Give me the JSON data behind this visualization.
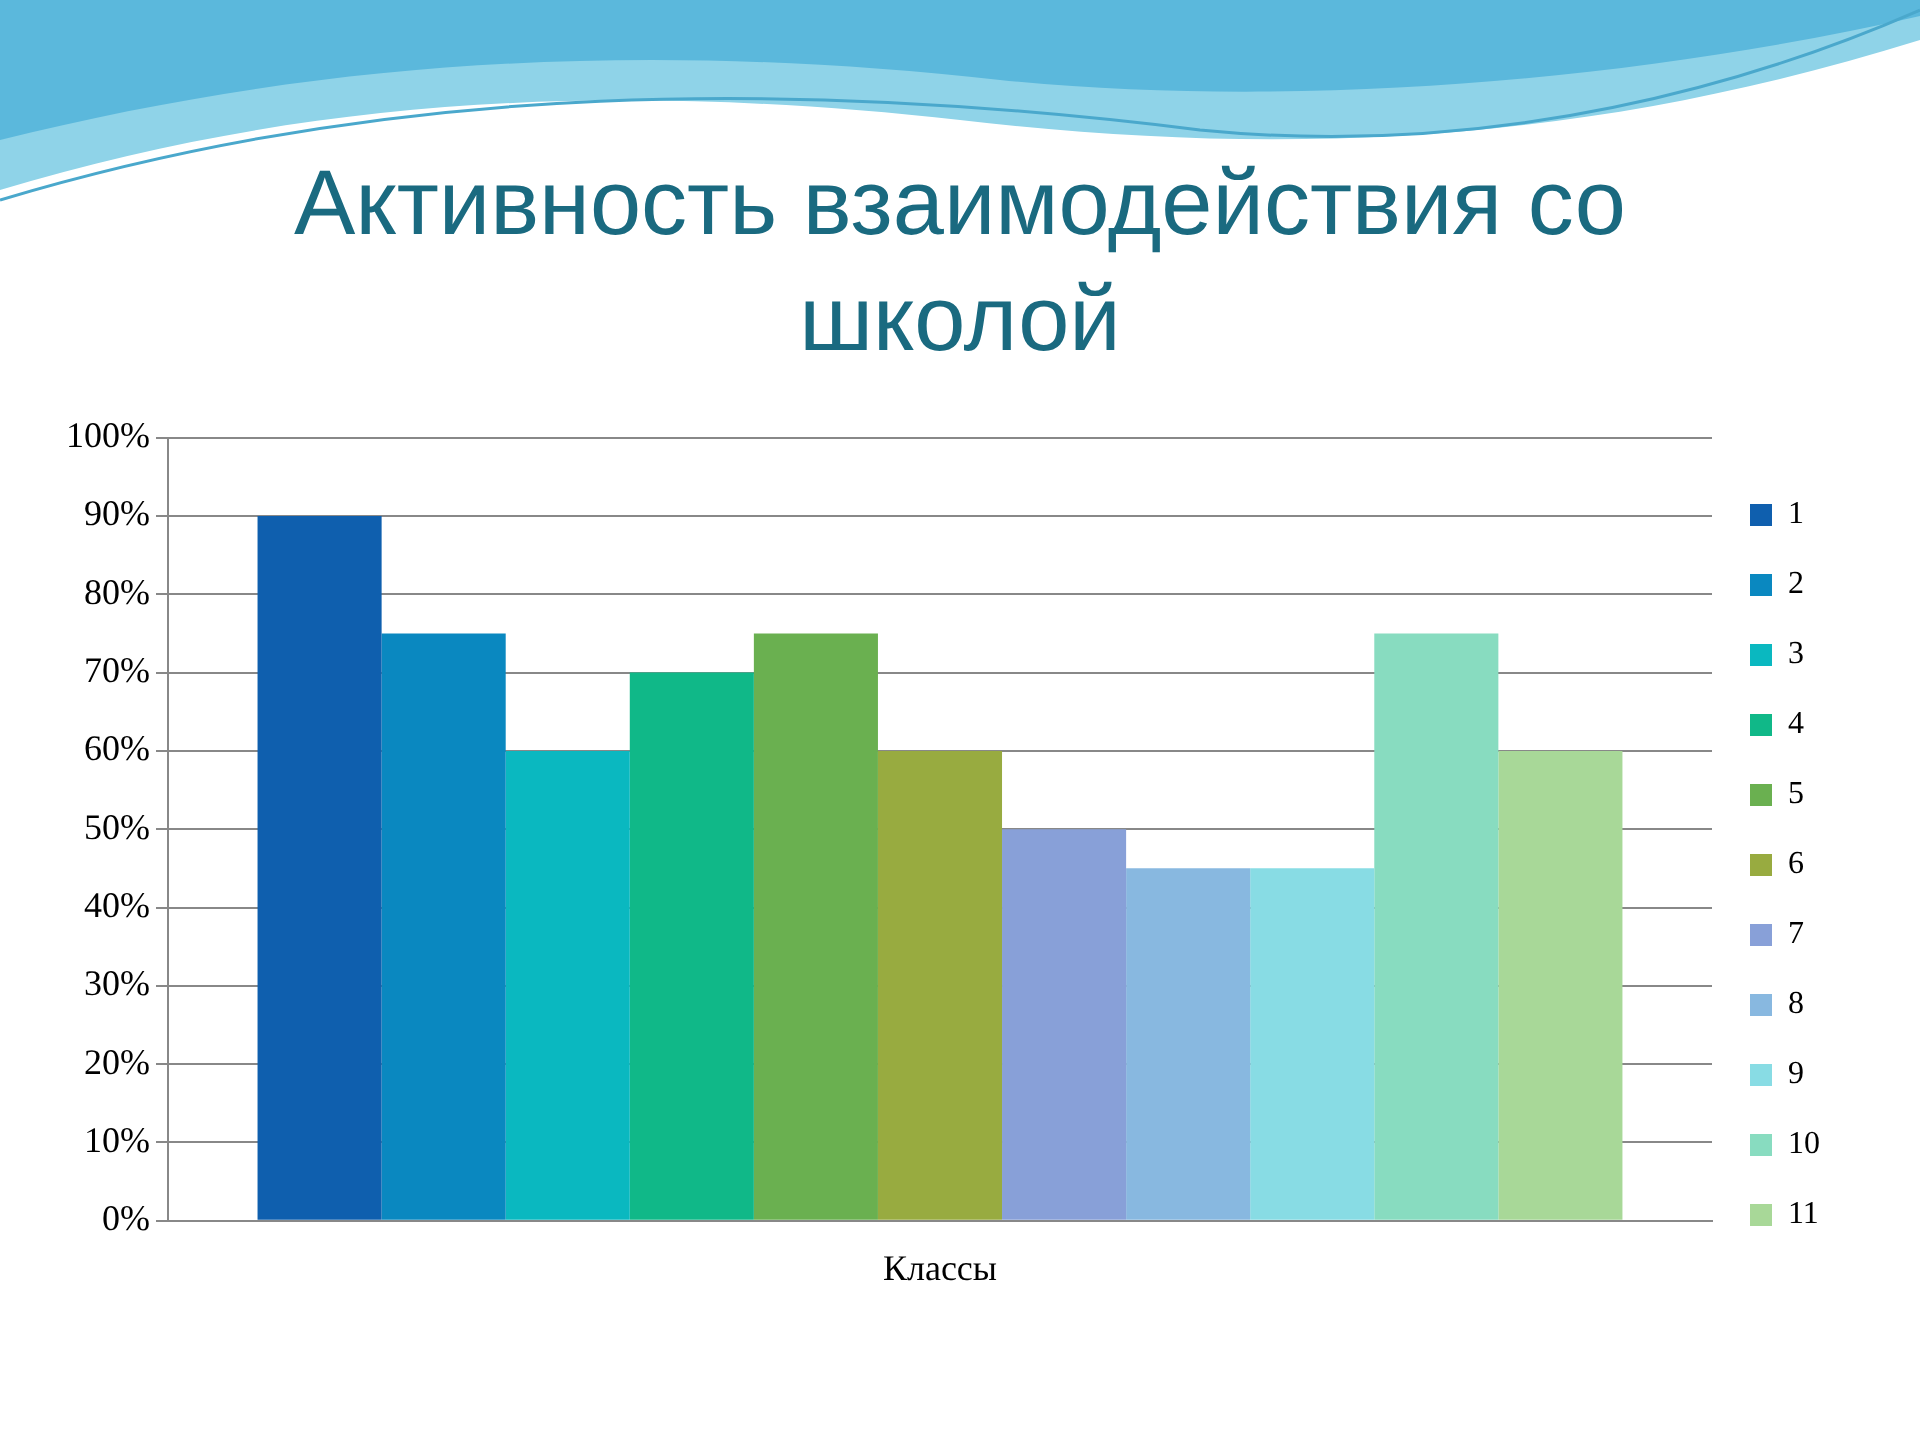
{
  "chart_data": {
    "type": "bar",
    "title": "Активность взаимодействия со школой",
    "categories": [
      "Классы"
    ],
    "series": [
      {
        "name": "1",
        "color": "#0f5fae",
        "values": [
          90
        ]
      },
      {
        "name": "2",
        "color": "#0a88c0",
        "values": [
          75
        ]
      },
      {
        "name": "3",
        "color": "#0ab8c0",
        "values": [
          60
        ]
      },
      {
        "name": "4",
        "color": "#10b888",
        "values": [
          70
        ]
      },
      {
        "name": "5",
        "color": "#6ab050",
        "values": [
          75
        ]
      },
      {
        "name": "6",
        "color": "#98ab40",
        "values": [
          60
        ]
      },
      {
        "name": "7",
        "color": "#88a0d8",
        "values": [
          50
        ]
      },
      {
        "name": "8",
        "color": "#88b8e0",
        "values": [
          45
        ]
      },
      {
        "name": "9",
        "color": "#88dce4",
        "values": [
          45
        ]
      },
      {
        "name": "10",
        "color": "#88dcc0",
        "values": [
          75
        ]
      },
      {
        "name": "11",
        "color": "#a8d898",
        "values": [
          60
        ]
      }
    ],
    "ylim": [
      0,
      100
    ],
    "yticks": [
      {
        "value": 0,
        "label": "0%"
      },
      {
        "value": 10,
        "label": "10%"
      },
      {
        "value": 20,
        "label": "20%"
      },
      {
        "value": 30,
        "label": "30%"
      },
      {
        "value": 40,
        "label": "40%"
      },
      {
        "value": 50,
        "label": "50%"
      },
      {
        "value": 60,
        "label": "60%"
      },
      {
        "value": 70,
        "label": "70%"
      },
      {
        "value": 80,
        "label": "80%"
      },
      {
        "value": 90,
        "label": "90%"
      },
      {
        "value": 100,
        "label": "100%"
      }
    ],
    "grid": "y",
    "legend": "right"
  }
}
